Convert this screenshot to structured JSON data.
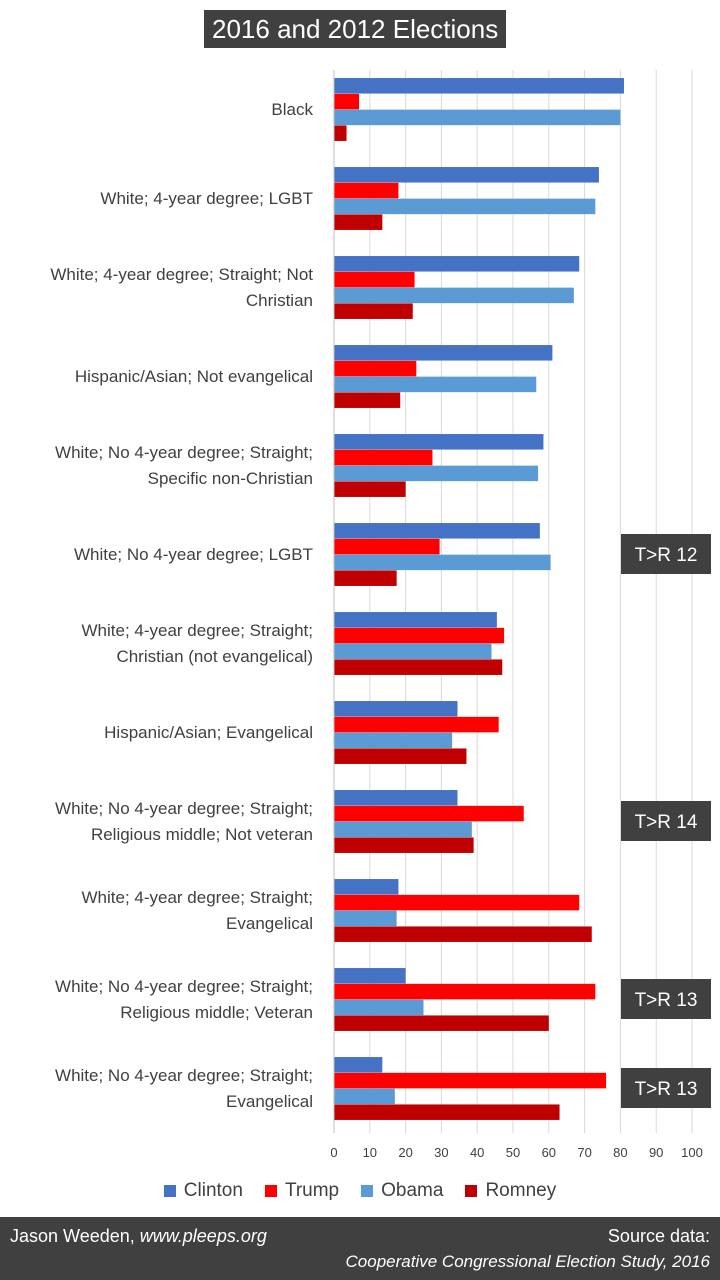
{
  "chart_data": {
    "type": "bar",
    "orientation": "horizontal",
    "title": "2016 and 2012 Elections",
    "categories": [
      [
        "Black"
      ],
      [
        "White; 4-year degree; LGBT"
      ],
      [
        "White; 4-year degree; Straight; Not",
        "Christian"
      ],
      [
        "Hispanic/Asian; Not evangelical"
      ],
      [
        "White; No 4-year degree; Straight;",
        "Specific non-Christian"
      ],
      [
        "White; No 4-year degree; LGBT"
      ],
      [
        "White; 4-year degree; Straight;",
        "Christian (not evangelical)"
      ],
      [
        "Hispanic/Asian; Evangelical"
      ],
      [
        "White; No 4-year degree; Straight;",
        "Religious middle; Not veteran"
      ],
      [
        "White; 4-year degree; Straight;",
        "Evangelical"
      ],
      [
        "White; No 4-year degree; Straight;",
        "Religious middle; Veteran"
      ],
      [
        "White; No 4-year degree; Straight;",
        "Evangelical"
      ]
    ],
    "series": [
      {
        "name": "Clinton",
        "color": "#4472c4",
        "values": [
          81,
          74,
          68.5,
          61,
          58.5,
          57.5,
          45.5,
          34.5,
          34.5,
          18,
          20,
          13.5
        ]
      },
      {
        "name": "Trump",
        "color": "#ff0000",
        "values": [
          7,
          18,
          22.5,
          23,
          27.5,
          29.5,
          47.5,
          46,
          53,
          68.5,
          73,
          76
        ]
      },
      {
        "name": "Obama",
        "color": "#5b9bd5",
        "values": [
          80,
          73,
          67,
          56.5,
          57,
          60.5,
          44,
          33,
          38.5,
          17.5,
          25,
          17
        ]
      },
      {
        "name": "Romney",
        "color": "#c00000",
        "values": [
          3.5,
          13.5,
          22,
          18.5,
          20,
          17.5,
          47,
          37,
          39,
          72,
          60,
          63
        ]
      }
    ],
    "xlim": [
      0,
      100
    ],
    "xticks": [
      0,
      10,
      20,
      30,
      40,
      50,
      60,
      70,
      80,
      90,
      100
    ],
    "grid": true,
    "legend_position": "bottom",
    "annotations": [
      {
        "category_index": 5,
        "text": "T>R 12"
      },
      {
        "category_index": 8,
        "text": "T>R 14"
      },
      {
        "category_index": 10,
        "text": "T>R 13"
      },
      {
        "category_index": 11,
        "text": "T>R 13"
      }
    ]
  },
  "footer": {
    "author": "Jason Weeden,",
    "site": "www.pleeps.org",
    "source_label": "Source data:",
    "source_name": "Cooperative Congressional Election Study, 2016"
  }
}
